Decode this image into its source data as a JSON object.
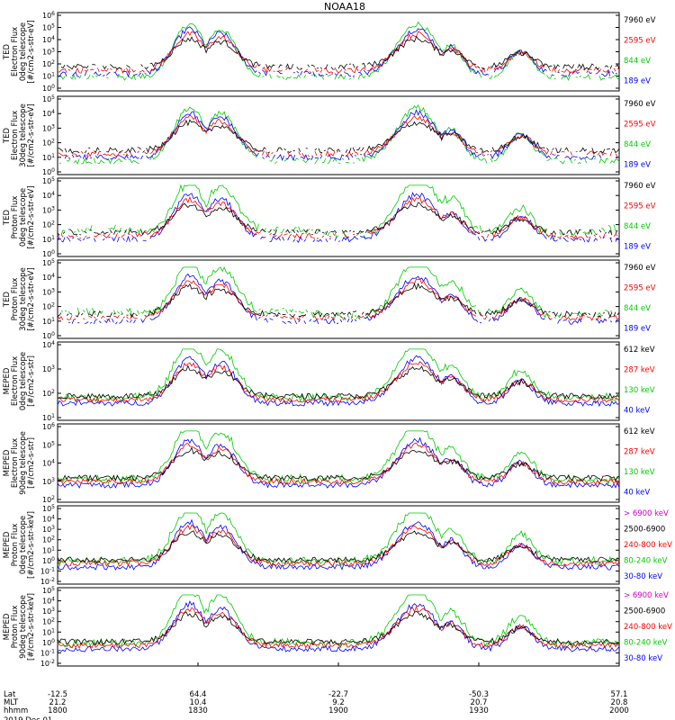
{
  "title": "NOAA18",
  "chart_data": [
    {
      "type": "line",
      "ylabel_lines": [
        "TED",
        "Electron Flux",
        "0deg telescope",
        "[#/cm2-s-str-eV]"
      ],
      "yticks": [
        "10^6",
        "10^5",
        "10^4",
        "10^3",
        "10^2",
        "10^1",
        "10^0"
      ],
      "ylim": [
        1,
        1000000
      ],
      "yscale": "log",
      "legend": [
        "7960 eV",
        "2595 eV",
        "844 eV",
        "189 eV"
      ]
    },
    {
      "type": "line",
      "ylabel_lines": [
        "TED",
        "Electron Flux",
        "30deg telescope",
        "[#/cm2-s-str-eV]"
      ],
      "yticks": [
        "10^5",
        "10^4",
        "10^3",
        "10^2",
        "10^1",
        "10^0"
      ],
      "ylim": [
        1,
        100000
      ],
      "yscale": "log",
      "legend": [
        "7960 eV",
        "2595 eV",
        "844 eV",
        "189 eV"
      ]
    },
    {
      "type": "line",
      "ylabel_lines": [
        "TED",
        "Proton Flux",
        "0deg telescope",
        "[#/cm2-s-str-eV]"
      ],
      "yticks": [
        "10^5",
        "10^4",
        "10^3",
        "10^2",
        "10^1",
        "10^0"
      ],
      "ylim": [
        1,
        100000
      ],
      "yscale": "log",
      "legend": [
        "7960 eV",
        "2595 eV",
        "844 eV",
        "189 eV"
      ]
    },
    {
      "type": "line",
      "ylabel_lines": [
        "TED",
        "Proton Flux",
        "30deg telescope",
        "[#/cm2-s-str-eV]"
      ],
      "yticks": [
        "10^5",
        "10^4",
        "10^3",
        "10^2",
        "10^1",
        "10^0"
      ],
      "ylim": [
        1,
        100000
      ],
      "yscale": "log",
      "legend": [
        "7960 eV",
        "2595 eV",
        "844 eV",
        "189 eV"
      ]
    },
    {
      "type": "line",
      "ylabel_lines": [
        "MEPED",
        "Electron Flux",
        "0deg telescope",
        "[#/cm2-s-str]"
      ],
      "yticks": [
        "10^4",
        "10^3",
        "10^2",
        "10^1"
      ],
      "ylim": [
        10,
        100000
      ],
      "yscale": "log",
      "legend": [
        "612 keV",
        "287 keV",
        "130 keV",
        "40 keV"
      ]
    },
    {
      "type": "line",
      "ylabel_lines": [
        "MEPED",
        "Electron Flux",
        "90deg telescope",
        "[#/cm2-s-str]"
      ],
      "yticks": [
        "10^6",
        "10^5",
        "10^4",
        "10^3",
        "10^2"
      ],
      "ylim": [
        100,
        1000000
      ],
      "yscale": "log",
      "legend": [
        "612 keV",
        "287 keV",
        "130 keV",
        "40 keV"
      ]
    },
    {
      "type": "line",
      "ylabel_lines": [
        "MEPED",
        "Proton Flux",
        "0deg telescope",
        "[#/cm2-s-str-keV]"
      ],
      "yticks": [
        "10^5",
        "10^4",
        "10^3",
        "10^2",
        "10^1",
        "10^0",
        "10^-1",
        "10^-2"
      ],
      "ylim": [
        0.01,
        100000
      ],
      "yscale": "log",
      "legend": [
        "> 6900 keV",
        "2500-6900",
        "240-800 keV",
        "80-240 keV",
        "30-80 keV"
      ]
    },
    {
      "type": "line",
      "ylabel_lines": [
        "MEPED",
        "Proton Flux",
        "90deg telescope",
        "[#/cm2-s-str-keV]"
      ],
      "yticks": [
        "10^5",
        "10^4",
        "10^3",
        "10^2",
        "10^1",
        "10^0",
        "10^-1",
        "10^-2"
      ],
      "ylim": [
        0.01,
        100000
      ],
      "yscale": "log",
      "legend": [
        "> 6900 keV",
        "2500-6900",
        "240-800 keV",
        "80-240 keV",
        "30-80 keV"
      ]
    }
  ],
  "xaxis": {
    "row_labels": [
      "Lat",
      "MLT",
      "hhmm"
    ],
    "date": "2019 Dec 01",
    "ticks": [
      {
        "lat": "-12.5",
        "mlt": "21.2",
        "hhmm": "1800"
      },
      {
        "lat": "64.4",
        "mlt": "10.4",
        "hhmm": "1830"
      },
      {
        "lat": "-22.7",
        "mlt": "9.2",
        "hhmm": "1900"
      },
      {
        "lat": "-50.3",
        "mlt": "20.7",
        "hhmm": "1930"
      },
      {
        "lat": "57.1",
        "mlt": "20.8",
        "hhmm": "2000"
      }
    ]
  },
  "colors": {
    "c1": "#000000",
    "c2": "#ff0000",
    "c3": "#00cc00",
    "c4": "#0000ff",
    "c5": "#cc00cc",
    "label1": "#000000",
    "label2": "#ff0000",
    "label3": "#00cc00",
    "label4": "#0000ff",
    "label5": "#cc00cc"
  }
}
